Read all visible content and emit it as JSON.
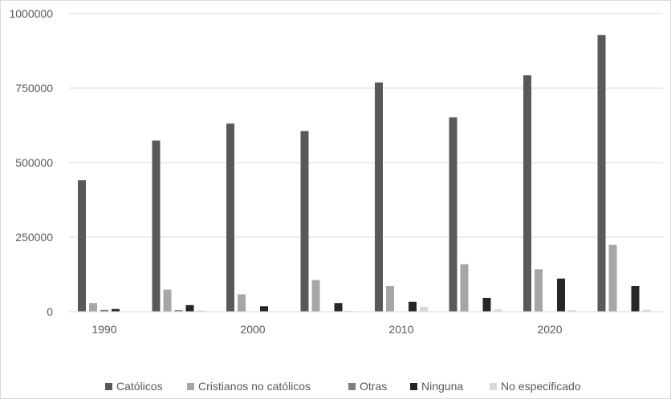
{
  "chart_data": {
    "type": "bar",
    "title": "",
    "xlabel": "",
    "ylabel": "",
    "ylim": [
      0,
      1000000
    ],
    "y_ticks": [
      "0",
      "250000",
      "500000",
      "750000",
      "1000000"
    ],
    "categories": [
      "1990",
      "1995",
      "2000",
      "2005",
      "2010",
      "2015",
      "2020",
      "2025"
    ],
    "x_tick_labels": [
      {
        "category": "1990",
        "label": "1990"
      },
      {
        "category": "2000",
        "label": "2000"
      },
      {
        "category": "2010",
        "label": "2010"
      },
      {
        "category": "2020",
        "label": "2020"
      }
    ],
    "grid": true,
    "legend_position": "bottom",
    "series": [
      {
        "name": "Católicos",
        "color": "#595959",
        "values": [
          441000,
          574000,
          631000,
          606000,
          769000,
          652000,
          793000,
          928000
        ]
      },
      {
        "name": "Cristianos no católicos",
        "color": "#a6a6a6",
        "values": [
          29000,
          74000,
          58000,
          106000,
          86000,
          159000,
          142000,
          224000
        ]
      },
      {
        "name": "Otras",
        "color": "#7f7f7f",
        "values": [
          6000,
          5000,
          0,
          0,
          0,
          0,
          0,
          0
        ]
      },
      {
        "name": "Ninguna",
        "color": "#262626",
        "values": [
          9000,
          22000,
          18000,
          29000,
          33000,
          46000,
          111000,
          86000
        ]
      },
      {
        "name": "No especificado",
        "color": "#d9d9d9",
        "values": [
          0,
          4000,
          0,
          3000,
          17000,
          8000,
          5000,
          7000
        ]
      }
    ]
  }
}
